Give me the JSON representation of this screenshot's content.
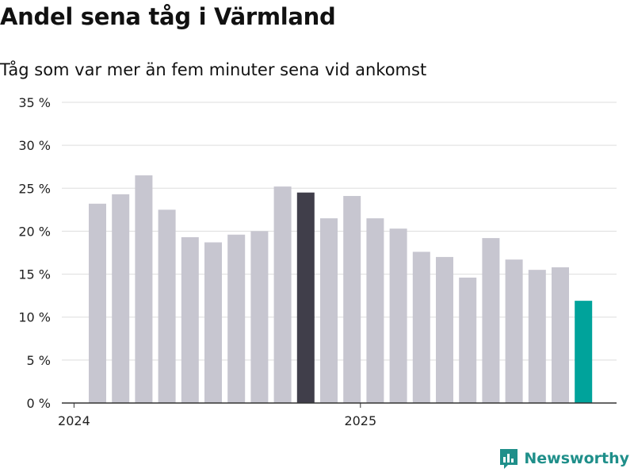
{
  "header": {
    "title": "Andel sena tåg i Värmland",
    "subtitle": "Tåg som var mer än fem minuter sena vid ankomst"
  },
  "brand": {
    "name": "Newsworthy"
  },
  "colors": {
    "default_bar": "#c7c6d0",
    "highlight_bar": "#403e4a",
    "latest_bar": "#00a39b",
    "grid": "#dddddd",
    "axis": "#333333",
    "brand": "#1f8f8a"
  },
  "chart_data": {
    "type": "bar",
    "title": "Andel sena tåg i Värmland",
    "subtitle": "Tåg som var mer än fem minuter sena vid ankomst",
    "xlabel": "",
    "ylabel": "",
    "ylim": [
      0,
      35
    ],
    "y_ticks": [
      0,
      5,
      10,
      15,
      20,
      25,
      30,
      35
    ],
    "y_tick_labels": [
      "0 %",
      "5 %",
      "10 %",
      "15 %",
      "20 %",
      "25 %",
      "30 %",
      "35 %"
    ],
    "grid": true,
    "categories": [
      "2024-01",
      "2024-02",
      "2024-03",
      "2024-04",
      "2024-05",
      "2024-06",
      "2024-07",
      "2024-08",
      "2024-09",
      "2024-10",
      "2024-11",
      "2024-12",
      "2025-01",
      "2025-02",
      "2025-03",
      "2025-04",
      "2025-05",
      "2025-06",
      "2025-07",
      "2025-08",
      "2025-09",
      "2025-10"
    ],
    "values": [
      23.2,
      24.3,
      26.5,
      22.5,
      19.3,
      18.7,
      19.6,
      20.0,
      25.2,
      24.5,
      21.5,
      24.1,
      21.5,
      20.3,
      17.6,
      17.0,
      14.6,
      19.2,
      16.7,
      15.5,
      15.8,
      11.9
    ],
    "highlight_index": 9,
    "latest_index": 21,
    "x_tick_labels": [
      {
        "label": "2024",
        "index": -0.5
      },
      {
        "label": "2025",
        "index": 11.5
      }
    ]
  }
}
